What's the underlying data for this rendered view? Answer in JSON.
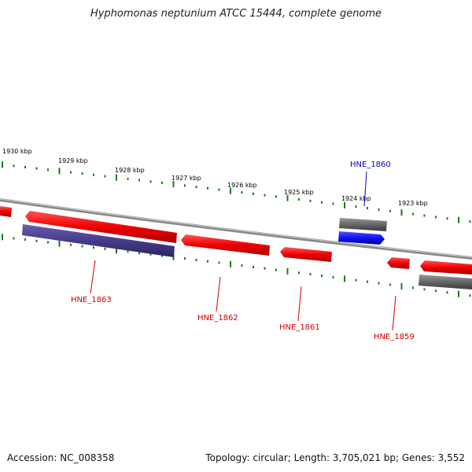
{
  "title": "Hyphomonas neptunium ATCC 15444, complete genome",
  "footer": {
    "accession": "Accession: NC_008358",
    "summary": "Topology: circular; Length: 3,705,021 bp; Genes: 3,552"
  },
  "colors": {
    "forward_gene": "#ee1111",
    "reverse_gene": "#ee1111",
    "pseudo_gene": "#555555",
    "rna_gene": "#1a1aee",
    "purple_gene": "#4a3f8c",
    "tick": "#1a7a1a",
    "backbone": "#888888",
    "label_red": "#cc0000",
    "label_blue": "#0000cc"
  },
  "kbp_labels": [
    "1930 kbp",
    "1929 kbp",
    "1928 kbp",
    "1927 kbp",
    "1926 kbp",
    "1925 kbp",
    "1924 kbp",
    "1923 kbp"
  ],
  "genes": [
    {
      "id": "HNE_1863",
      "color": "red"
    },
    {
      "id": "HNE_1862",
      "color": "red"
    },
    {
      "id": "HNE_1861",
      "color": "red"
    },
    {
      "id": "HNE_1860",
      "color": "blue"
    },
    {
      "id": "HNE_1859",
      "color": "red"
    }
  ]
}
